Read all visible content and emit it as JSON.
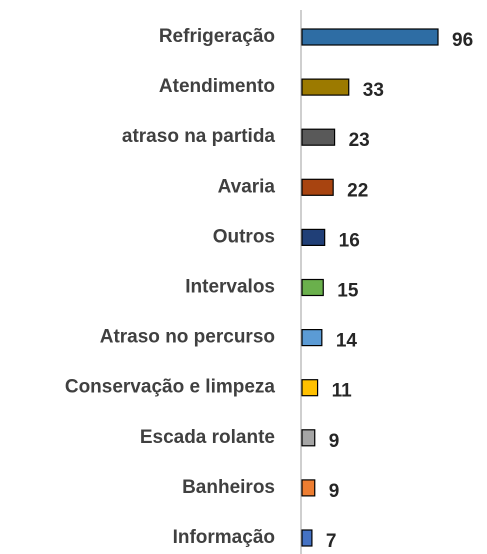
{
  "chart_data": {
    "type": "bar",
    "orientation": "horizontal",
    "categories": [
      "Refrigeração",
      "Atendimento",
      "atraso na partida",
      "Avaria",
      "Outros",
      "Intervalos",
      "Atraso no percurso",
      "Conservação e limpeza",
      "Escada rolante",
      "Banheiros",
      "Informação"
    ],
    "values": [
      96,
      33,
      23,
      22,
      16,
      15,
      14,
      11,
      9,
      9,
      7
    ],
    "colors": [
      "#2e6da4",
      "#9c7a00",
      "#595959",
      "#a84410",
      "#203f77",
      "#6ab04c",
      "#5b9bd5",
      "#ffc000",
      "#a5a5a5",
      "#ed7d31",
      "#4472c4"
    ]
  }
}
